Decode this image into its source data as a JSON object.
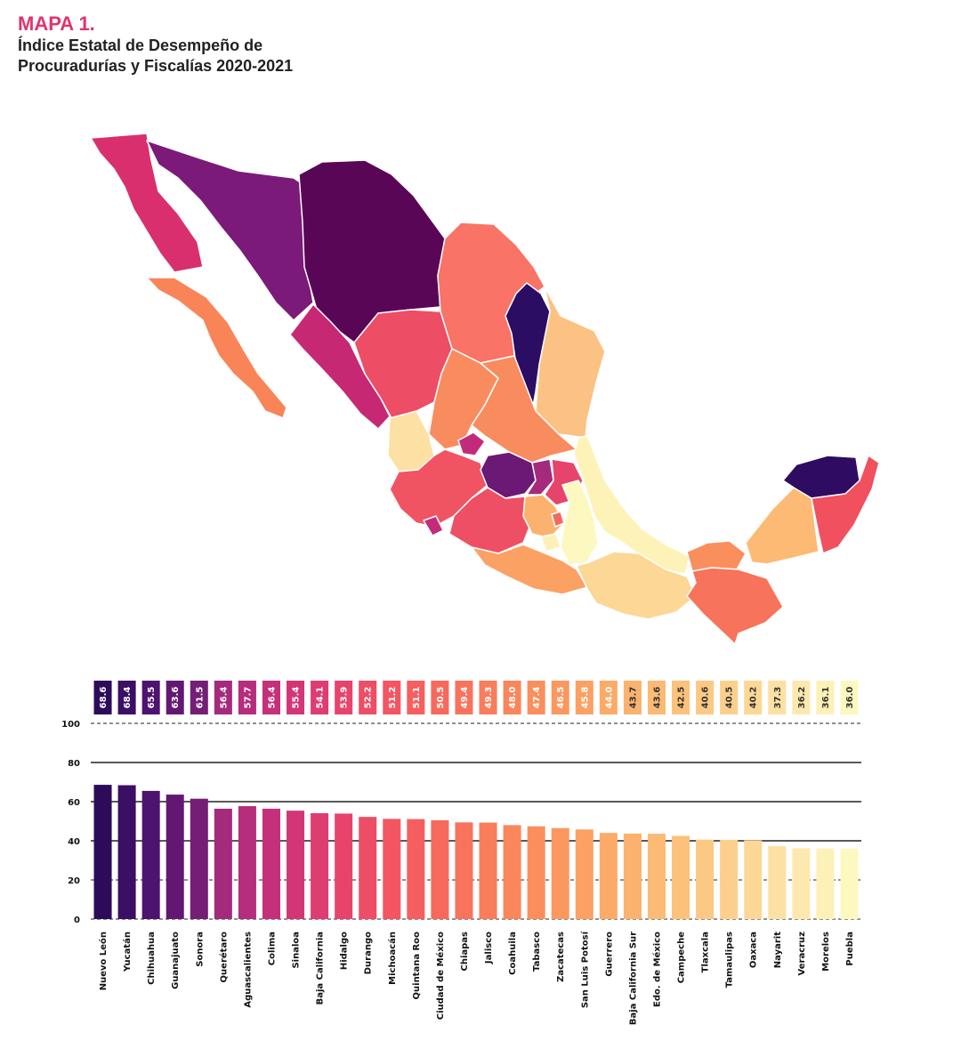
{
  "header": {
    "label": "MAPA 1.",
    "title_line1": "Índice Estatal de Desempeño de",
    "title_line2": "Procuradurías y Fiscalías 2020-2021"
  },
  "colors": {
    "accent": "#e0336f",
    "scale": [
      "#2a0a5e",
      "#4b0d6b",
      "#7a1a78",
      "#c42a7a",
      "#e8406a",
      "#f36b66",
      "#f98c5e",
      "#fcae7a",
      "#fdd79a",
      "#fcfcbf"
    ]
  },
  "chart_data": {
    "type": "bar",
    "categories": [
      "Nuevo León",
      "Yucatán",
      "Chihuahua",
      "Guanajuato",
      "Sonora",
      "Querétaro",
      "Aguascalientes",
      "Colima",
      "Sinaloa",
      "Baja California",
      "Hidalgo",
      "Durango",
      "Michoacán",
      "Quintana Roo",
      "Ciudad de México",
      "Chiapas",
      "Jalisco",
      "Coahuila",
      "Tabasco",
      "Zacatecas",
      "San Luis Potosí",
      "Guerrero",
      "Baja California Sur",
      "Edo. de México",
      "Campeche",
      "Tlaxcala",
      "Tamaulipas",
      "Oaxaca",
      "Nayarit",
      "Veracruz",
      "Morelos",
      "Puebla"
    ],
    "values": [
      68.6,
      68.4,
      65.5,
      63.6,
      61.5,
      56.4,
      57.7,
      56.4,
      55.4,
      54.1,
      53.9,
      52.2,
      51.2,
      51.1,
      50.5,
      49.4,
      49.3,
      48.0,
      47.4,
      46.5,
      45.8,
      44.0,
      43.7,
      43.6,
      42.5,
      40.6,
      40.5,
      40.2,
      37.3,
      36.2,
      36.1,
      36.0
    ],
    "value_labels": [
      "68.6",
      "68.4",
      "65.5",
      "63.6",
      "61.5",
      "56.4",
      "57.7",
      "56.4",
      "55.4",
      "54.1",
      "53.9",
      "52.2",
      "51.2",
      "51.1",
      "50.5",
      "49.4",
      "49.3",
      "48.0",
      "47.4",
      "46.5",
      "45.8",
      "44.0",
      "43.7",
      "43.6",
      "42.5",
      "40.6",
      "40.5",
      "40.2",
      "37.3",
      "36.2",
      "36.1",
      "36.0"
    ],
    "bar_colors": [
      "#2d0b59",
      "#3b0f63",
      "#4e136e",
      "#621873",
      "#741e76",
      "#a42a7c",
      "#b52d7c",
      "#c4307a",
      "#d23677",
      "#de3d72",
      "#e7446c",
      "#ee4d66",
      "#f35662",
      "#f55f5f",
      "#f7695c",
      "#f8735b",
      "#f97c5b",
      "#fa865b",
      "#fa8f5d",
      "#fb985f",
      "#fba163",
      "#fbaa68",
      "#fbb26e",
      "#fbba75",
      "#fcc27c",
      "#fcc984",
      "#fcd08c",
      "#fcd795",
      "#fde0a3",
      "#fde9af",
      "#fdf1b8",
      "#fcf8bf"
    ],
    "yticks": [
      "0",
      "20",
      "40",
      "60",
      "80",
      "100"
    ],
    "ylim": [
      0,
      100
    ],
    "grid": "horizontal dashed"
  }
}
